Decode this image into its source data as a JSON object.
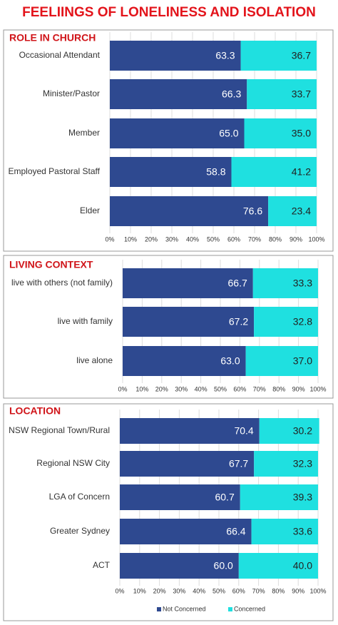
{
  "title": "FEELIINGS OF LONELINESS AND ISOLATION",
  "chart_data": [
    {
      "type": "bar",
      "title": "ROLE IN CHURCH",
      "categories": [
        "Occasional Attendant",
        "Minister/Pastor",
        "Member",
        "Employed Pastoral Staff",
        "Elder"
      ],
      "series": [
        {
          "color": "#2e4990",
          "values": [
            63.3,
            66.3,
            65.0,
            58.8,
            76.6
          ],
          "value_labels": [
            "63.3",
            "66.3",
            "65.0",
            "58.8",
            "76.6"
          ]
        },
        {
          "color": "#1fe0e0",
          "values": [
            36.7,
            33.7,
            35.0,
            41.2,
            23.4
          ],
          "value_labels": [
            "36.7",
            "33.7",
            "35.0",
            "41.2",
            "23.4"
          ]
        }
      ],
      "xlim": [
        0,
        100
      ],
      "xticks": [
        {
          "value": 0,
          "label": "0%"
        },
        {
          "value": 10,
          "label": "10%"
        },
        {
          "value": 20,
          "label": "20%"
        },
        {
          "value": 30,
          "label": "30%"
        },
        {
          "value": 40,
          "label": "40%"
        },
        {
          "value": 50,
          "label": "50%"
        },
        {
          "value": 60,
          "label": "60%"
        },
        {
          "value": 70,
          "label": "70%"
        },
        {
          "value": 80,
          "label": "80%"
        },
        {
          "value": 90,
          "label": "90%"
        },
        {
          "value": 100,
          "label": "100%"
        }
      ],
      "grid": true
    },
    {
      "type": "bar",
      "title": "LIVING CONTEXT",
      "categories": [
        "live with others (not family)",
        "live with family",
        "live alone"
      ],
      "series": [
        {
          "color": "#2e4990",
          "values": [
            66.7,
            67.2,
            63.0
          ],
          "value_labels": [
            "66.7",
            "67.2",
            "63.0"
          ]
        },
        {
          "color": "#1fe0e0",
          "values": [
            33.3,
            32.8,
            37.0
          ],
          "value_labels": [
            "33.3",
            "32.8",
            "37.0"
          ]
        }
      ],
      "xlim": [
        0,
        100
      ],
      "xticks": [
        {
          "value": 0,
          "label": "0%"
        },
        {
          "value": 10,
          "label": "10%"
        },
        {
          "value": 20,
          "label": "20%"
        },
        {
          "value": 30,
          "label": "30%"
        },
        {
          "value": 40,
          "label": "40%"
        },
        {
          "value": 50,
          "label": "50%"
        },
        {
          "value": 60,
          "label": "60%"
        },
        {
          "value": 70,
          "label": "70%"
        },
        {
          "value": 80,
          "label": "80%"
        },
        {
          "value": 90,
          "label": "90%"
        },
        {
          "value": 100,
          "label": "100%"
        }
      ],
      "grid": true
    },
    {
      "type": "bar",
      "title": "LOCATION",
      "categories": [
        "NSW Regional Town/Rural",
        "Regional NSW City",
        "LGA of Concern",
        "Greater Sydney",
        "ACT"
      ],
      "series": [
        {
          "name": "Not Concerned",
          "color": "#2e4990",
          "values": [
            70.4,
            67.7,
            60.7,
            66.4,
            60.0
          ],
          "value_labels": [
            "70.4",
            "67.7",
            "60.7",
            "66.4",
            "60.0"
          ]
        },
        {
          "name": "Concerned",
          "color": "#1fe0e0",
          "values": [
            30.2,
            32.3,
            39.3,
            33.6,
            40.0
          ],
          "value_labels": [
            "30.2",
            "32.3",
            "39.3",
            "33.6",
            "40.0"
          ]
        }
      ],
      "xlim": [
        0,
        100
      ],
      "xticks": [
        {
          "value": 0,
          "label": "0%"
        },
        {
          "value": 10,
          "label": "10%"
        },
        {
          "value": 20,
          "label": "20%"
        },
        {
          "value": 30,
          "label": "30%"
        },
        {
          "value": 40,
          "label": "40%"
        },
        {
          "value": 50,
          "label": "50%"
        },
        {
          "value": 60,
          "label": "60%"
        },
        {
          "value": 70,
          "label": "70%"
        },
        {
          "value": 80,
          "label": "80%"
        },
        {
          "value": 90,
          "label": "90%"
        },
        {
          "value": 100,
          "label": "100%"
        }
      ],
      "grid": true,
      "legend": "bottom"
    }
  ]
}
